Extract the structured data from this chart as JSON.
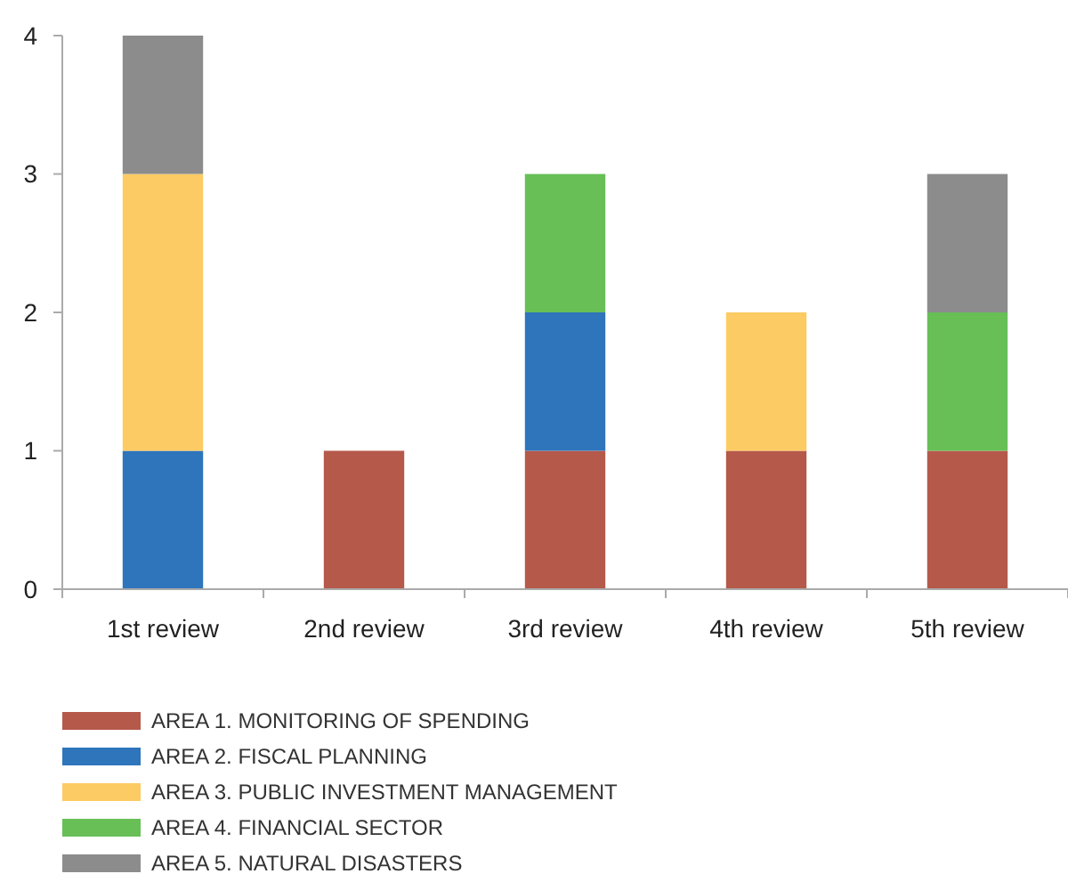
{
  "chart_data": {
    "type": "bar",
    "stacked": true,
    "categories": [
      "1st review",
      "2nd review",
      "3rd review",
      "4th review",
      "5th review"
    ],
    "series": [
      {
        "name": "AREA 1. MONITORING OF SPENDING",
        "color": "#b5594a",
        "values": [
          null,
          1,
          1,
          1,
          1
        ]
      },
      {
        "name": "AREA 2. FISCAL PLANNING",
        "color": "#2e75bb",
        "values": [
          1,
          null,
          1,
          null,
          null
        ]
      },
      {
        "name": "AREA 3. PUBLIC INVESTMENT MANAGEMENT",
        "color": "#fdcb63",
        "values": [
          2,
          null,
          null,
          1,
          null
        ]
      },
      {
        "name": "AREA 4. FINANCIAL SECTOR",
        "color": "#67bf56",
        "values": [
          null,
          null,
          1,
          null,
          1
        ]
      },
      {
        "name": "AREA 5. NATURAL DISASTERS",
        "color": "#8c8c8c",
        "values": [
          1,
          null,
          null,
          null,
          1
        ]
      }
    ],
    "ylim": [
      0,
      4
    ],
    "yticks": [
      0,
      1,
      2,
      3,
      4
    ],
    "grid": false,
    "legend": "bottom"
  }
}
